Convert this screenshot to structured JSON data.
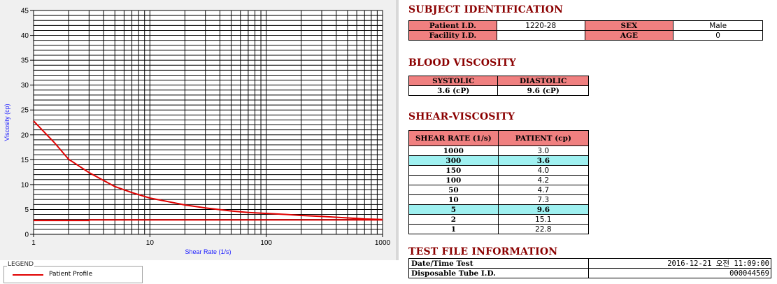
{
  "chart_data": {
    "type": "line",
    "title": "",
    "xlabel": "Shear Rate (1/s)",
    "ylabel": "Viscosity (cp)",
    "xscale": "log",
    "xlim": [
      1,
      1000
    ],
    "ylim": [
      0,
      45
    ],
    "x_ticks": [
      "1",
      "10",
      "100",
      "1000"
    ],
    "y_ticks": [
      "0",
      "5",
      "10",
      "15",
      "20",
      "25",
      "30",
      "35",
      "40",
      "45"
    ],
    "grid": true,
    "series": [
      {
        "name": "Patient Profile",
        "color": "#e00000",
        "x": [
          1,
          1.5,
          2,
          3,
          5,
          7,
          10,
          20,
          30,
          50,
          70,
          100,
          150,
          200,
          300,
          500,
          700,
          1000
        ],
        "y": [
          22.8,
          18.5,
          15.1,
          12.4,
          9.6,
          8.4,
          7.3,
          5.9,
          5.3,
          4.7,
          4.4,
          4.2,
          4.0,
          3.8,
          3.6,
          3.3,
          3.1,
          3.0
        ]
      },
      {
        "name": "",
        "color": "#e00000",
        "x": [
          1,
          3,
          3,
          1000
        ],
        "y": [
          2.8,
          2.8,
          2.9,
          2.9
        ]
      }
    ]
  },
  "legend": {
    "title": "LEGEND",
    "entries": [
      {
        "label": "Patient Profile",
        "color": "#e00000"
      }
    ]
  },
  "subject": {
    "title": "SUBJECT IDENTIFICATION",
    "patient_id_label": "Patient I.D.",
    "patient_id": "1220-28",
    "sex_label": "SEX",
    "sex": "Male",
    "facility_id_label": "Facility I.D.",
    "facility_id": "",
    "age_label": "AGE",
    "age": "0"
  },
  "blood": {
    "title": "BLOOD VISCOSITY",
    "systolic_label": "SYSTOLIC",
    "diastolic_label": "DIASTOLIC",
    "systolic": "3.6 (cP)",
    "diastolic": "9.6 (cP)"
  },
  "shear": {
    "title": "SHEAR-VISCOSITY",
    "col_rate": "SHEAR RATE (1/s)",
    "col_patient": "PATIENT (cp)",
    "rows": [
      {
        "rate": "1000",
        "value": "3.0"
      },
      {
        "rate": "300",
        "value": "3.6"
      },
      {
        "rate": "150",
        "value": "4.0"
      },
      {
        "rate": "100",
        "value": "4.2"
      },
      {
        "rate": "50",
        "value": "4.7"
      },
      {
        "rate": "10",
        "value": "7.3"
      },
      {
        "rate": "5",
        "value": "9.6"
      },
      {
        "rate": "2",
        "value": "15.1"
      },
      {
        "rate": "1",
        "value": "22.8"
      }
    ]
  },
  "file": {
    "title": "TEST FILE INFORMATION",
    "date_label": "Date/Time Test",
    "date_value": "2016-12-21  오전 11:09:00",
    "tube_label": "Disposable Tube I.D.",
    "tube_value": "000044569"
  },
  "colors": {
    "header_fill": "#f08080",
    "highlight_fill": "#9ff0f0",
    "title_color": "#8b0000",
    "curve_color": "#e00000"
  }
}
